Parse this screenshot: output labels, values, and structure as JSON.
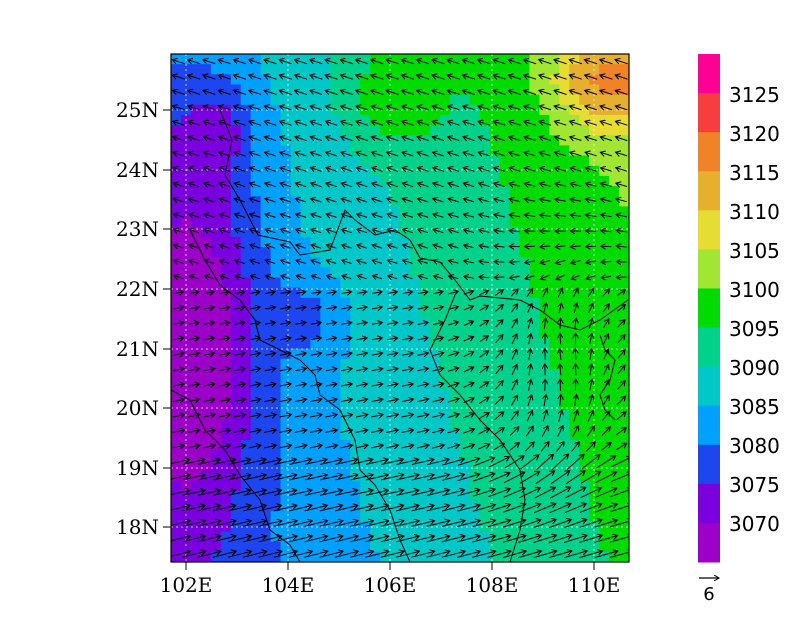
{
  "map": {
    "lon_ticks": [
      "102E",
      "104E",
      "106E",
      "108E",
      "110E"
    ],
    "lat_ticks": [
      "18N",
      "19N",
      "20N",
      "21N",
      "22N",
      "23N",
      "24N",
      "25N"
    ],
    "lon_range": [
      101.7,
      110.8
    ],
    "lat_range": [
      17.4,
      25.9
    ],
    "gridlines": true
  },
  "colorbar": {
    "labels": [
      "3070",
      "3075",
      "3080",
      "3085",
      "3090",
      "3095",
      "3100",
      "3105",
      "3110",
      "3115",
      "3120",
      "3125"
    ],
    "colors": [
      "#9c00c8",
      "#7b00e0",
      "#1e46f0",
      "#00a0ff",
      "#00c8c8",
      "#00d28c",
      "#00dc00",
      "#a0e632",
      "#e6dc32",
      "#e6af2d",
      "#f08228",
      "#fa3c3c",
      "#ff0096"
    ]
  },
  "reference_vector": {
    "value": "6"
  },
  "field": {
    "variable_range": [
      3065,
      3130
    ]
  }
}
